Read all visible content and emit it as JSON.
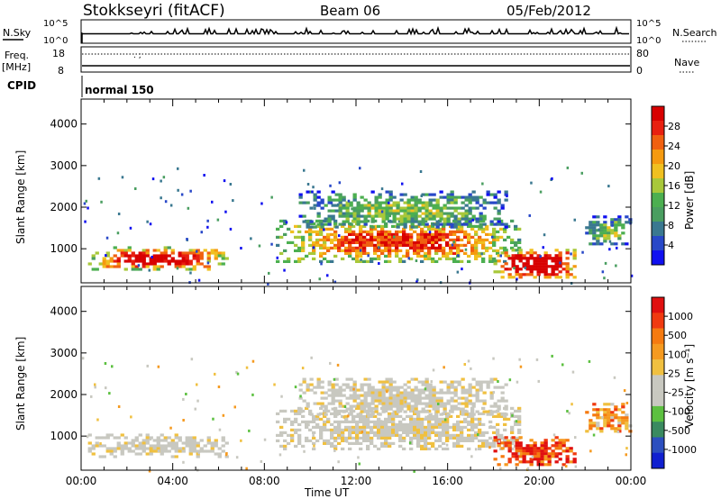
{
  "header": {
    "station": "Stokkseyri (fitACF)",
    "beam": "Beam 06",
    "date": "05/Feb/2012"
  },
  "top_panels": {
    "nsky_label": "N.Sky",
    "nsky_ticks": [
      "10^5",
      "10^0"
    ],
    "nsearch_label": "N.Search",
    "nsearch_ticks": [
      "10^5",
      "10^0"
    ],
    "freq_label_1": "Freq.",
    "freq_label_2": "[MHz]",
    "freq_ticks": [
      "18",
      "8"
    ],
    "nave_label": "Nave",
    "nave_ticks": [
      "80",
      "0"
    ],
    "cpid_label": "CPID",
    "cpid_value": "normal 150"
  },
  "x_axis": {
    "ticks": [
      "00:00",
      "04:00",
      "08:00",
      "12:00",
      "16:00",
      "20:00",
      "00:00"
    ],
    "label": "Time UT"
  },
  "chart_data": [
    {
      "type": "heatmap",
      "name": "power",
      "ylabel": "Slant Range [km]",
      "yticks": [
        "1000",
        "2000",
        "3000",
        "4000"
      ],
      "ylim": [
        180,
        4600
      ],
      "xlim_hours": [
        0,
        24
      ],
      "colorbar": {
        "label": "Power [dB]",
        "ticks": [
          "4",
          "8",
          "12",
          "16",
          "20",
          "24",
          "28"
        ],
        "colors": [
          "#1010f0",
          "#2848c8",
          "#3a7890",
          "#4a9e60",
          "#4caf50",
          "#a8c83a",
          "#f0c020",
          "#f59a10",
          "#f06010",
          "#e82010",
          "#d80000"
        ]
      },
      "regions": [
        {
          "t0": 0.3,
          "t1": 6.4,
          "r0": 520,
          "r1": 1060,
          "level": 0.72
        },
        {
          "t0": 8.5,
          "t1": 19.2,
          "r0": 700,
          "r1": 1700,
          "level": 0.6
        },
        {
          "t0": 9.5,
          "t1": 18.5,
          "r0": 1500,
          "r1": 2400,
          "level": 0.3
        },
        {
          "t0": 18.0,
          "t1": 21.6,
          "r0": 300,
          "r1": 1000,
          "level": 0.85
        },
        {
          "t0": 22.0,
          "t1": 24.0,
          "r0": 1100,
          "r1": 1800,
          "level": 0.3
        }
      ]
    },
    {
      "type": "heatmap",
      "name": "velocity",
      "ylabel": "Slant Range [km]",
      "yticks": [
        "1000",
        "2000",
        "3000",
        "4000"
      ],
      "ylim": [
        180,
        4600
      ],
      "xlim_hours": [
        0,
        24
      ],
      "colorbar": {
        "label": "Velocity [m s⁻¹]",
        "ticks": [
          "1000",
          "500",
          "100",
          "25",
          "-25",
          "-100",
          "-500",
          "-1000"
        ],
        "colors": [
          "#1020d0",
          "#2c4fbf",
          "#3a8a60",
          "#5cc040",
          "#c8c8c0",
          "#c8c8c0",
          "#f0c040",
          "#f59a20",
          "#f57a10",
          "#f03a10",
          "#e01010"
        ]
      },
      "regions": [
        {
          "t0": 0.3,
          "t1": 6.4,
          "r0": 520,
          "r1": 1060,
          "level": 0.5
        },
        {
          "t0": 8.5,
          "t1": 19.2,
          "r0": 700,
          "r1": 1700,
          "level": 0.5
        },
        {
          "t0": 9.5,
          "t1": 18.5,
          "r0": 1500,
          "r1": 2400,
          "level": 0.5
        },
        {
          "t0": 18.0,
          "t1": 21.6,
          "r0": 300,
          "r1": 1000,
          "level": 0.85
        },
        {
          "t0": 22.0,
          "t1": 24.0,
          "r0": 1100,
          "r1": 1800,
          "level": 0.7
        }
      ]
    }
  ]
}
